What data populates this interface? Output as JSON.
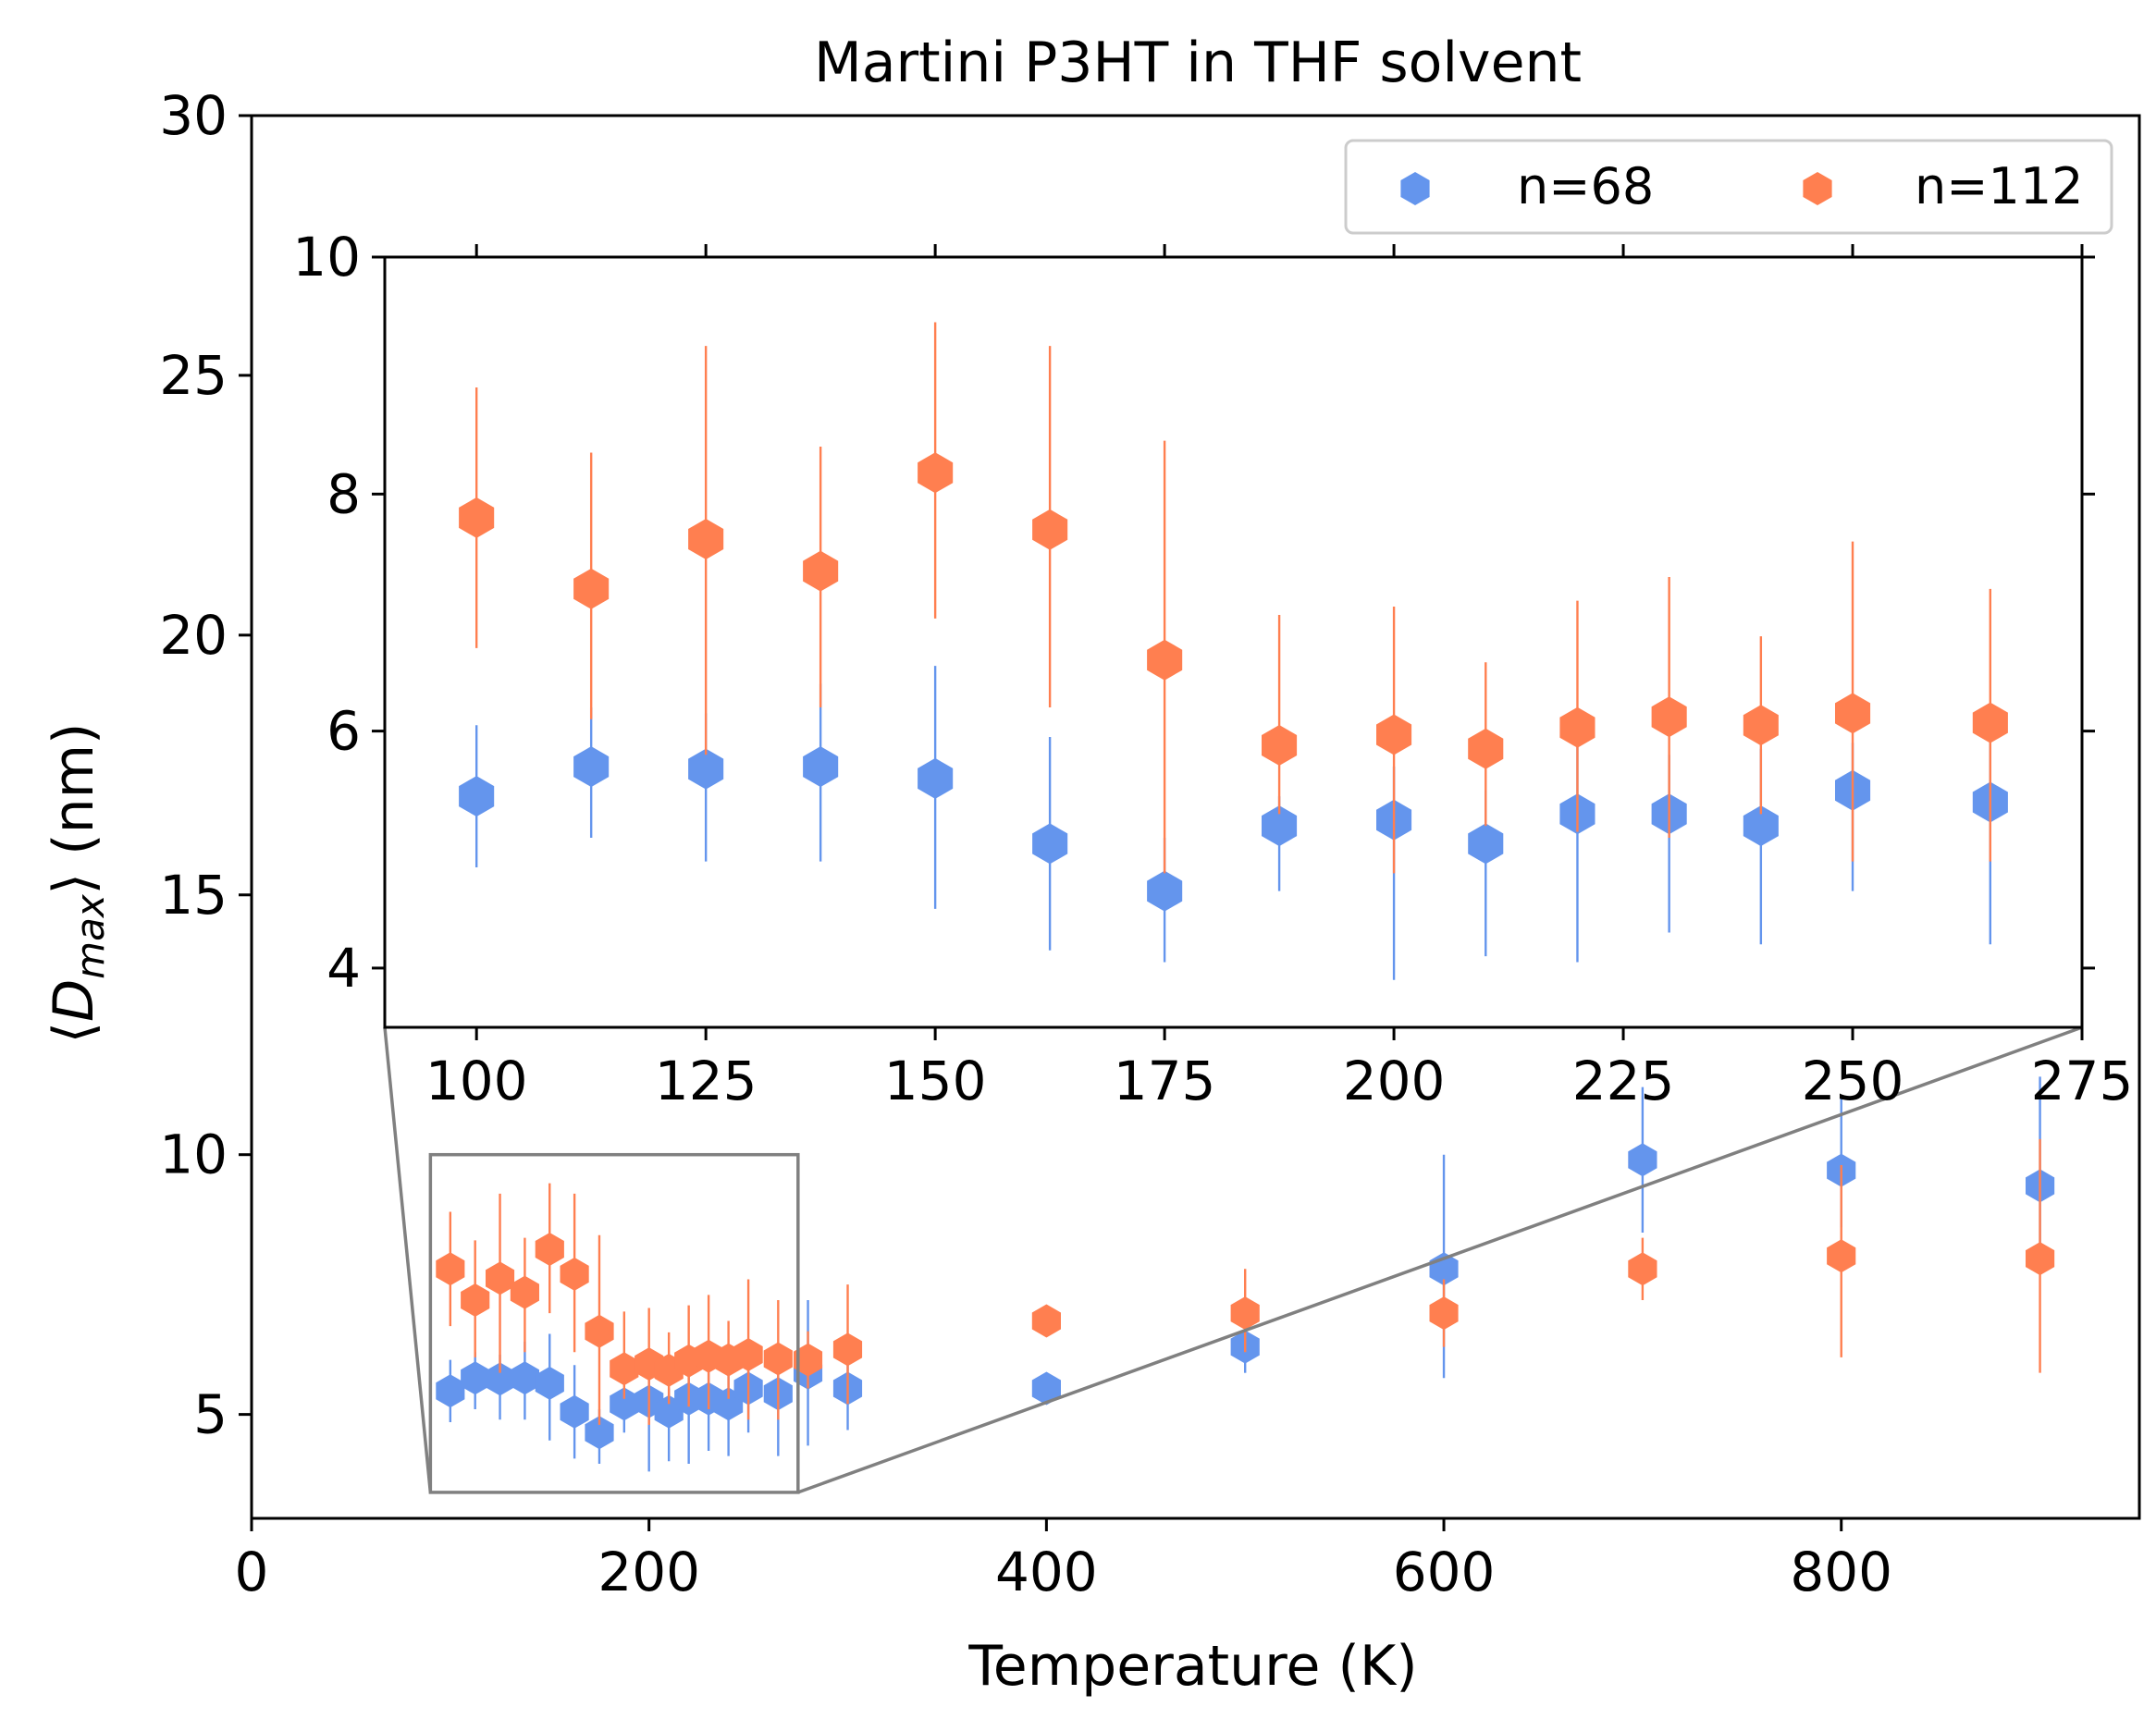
{
  "chart_data": [
    {
      "id": "main",
      "type": "scatter",
      "title": "Martini P3HT in THF solvent",
      "xlabel": "Temperature (K)",
      "ylabel_parts": [
        "⟨",
        "D",
        "max",
        "⟩ (nm)"
      ],
      "xlim": [
        0,
        950
      ],
      "ylim": [
        3,
        30
      ],
      "xticks": [
        0,
        200,
        400,
        600,
        800
      ],
      "yticks": [
        5,
        10,
        15,
        20,
        25,
        30
      ],
      "legend": {
        "location": "top-right",
        "entries": [
          "n=68",
          "n=112"
        ]
      },
      "series": [
        {
          "name": "n=68",
          "color": "#6495ED",
          "points": [
            {
              "x": 100,
              "y": 5.45,
              "lo": 4.85,
              "hi": 6.05
            },
            {
              "x": 112.5,
              "y": 5.7,
              "lo": 5.1,
              "hi": 6.2
            },
            {
              "x": 125,
              "y": 5.68,
              "lo": 4.9,
              "hi": 6.15
            },
            {
              "x": 137.5,
              "y": 5.7,
              "lo": 4.9,
              "hi": 6.4
            },
            {
              "x": 150,
              "y": 5.6,
              "lo": 4.5,
              "hi": 6.55
            },
            {
              "x": 162.5,
              "y": 5.05,
              "lo": 4.15,
              "hi": 5.95
            },
            {
              "x": 175,
              "y": 4.65,
              "lo": 4.05,
              "hi": 5.1
            },
            {
              "x": 187.5,
              "y": 5.2,
              "lo": 4.65,
              "hi": 5.45
            },
            {
              "x": 200,
              "y": 5.25,
              "lo": 3.9,
              "hi": 5.7
            },
            {
              "x": 210,
              "y": 5.05,
              "lo": 4.1,
              "hi": 5.5
            },
            {
              "x": 220,
              "y": 5.3,
              "lo": 4.05,
              "hi": 5.9
            },
            {
              "x": 230,
              "y": 5.3,
              "lo": 4.3,
              "hi": 5.8
            },
            {
              "x": 240,
              "y": 5.2,
              "lo": 4.2,
              "hi": 5.85
            },
            {
              "x": 250,
              "y": 5.5,
              "lo": 4.65,
              "hi": 5.9
            },
            {
              "x": 265,
              "y": 5.4,
              "lo": 4.2,
              "hi": 6.05
            },
            {
              "x": 280,
              "y": 5.8,
              "lo": 4.4,
              "hi": 7.2
            },
            {
              "x": 300,
              "y": 5.5,
              "lo": 4.7,
              "hi": 6.1
            },
            {
              "x": 400,
              "y": 5.5,
              "lo": 5.3,
              "hi": 5.7
            },
            {
              "x": 500,
              "y": 6.3,
              "lo": 5.8,
              "hi": 6.7
            },
            {
              "x": 600,
              "y": 7.8,
              "lo": 5.7,
              "hi": 10.0
            },
            {
              "x": 700,
              "y": 9.9,
              "lo": 8.5,
              "hi": 11.3
            },
            {
              "x": 800,
              "y": 9.7,
              "lo": 8.6,
              "hi": 11.1
            },
            {
              "x": 900,
              "y": 9.4,
              "lo": 7.8,
              "hi": 11.5
            }
          ]
        },
        {
          "name": "n=112",
          "color": "#FF7F50",
          "points": [
            {
              "x": 100,
              "y": 7.8,
              "lo": 6.7,
              "hi": 8.9
            },
            {
              "x": 112.5,
              "y": 7.2,
              "lo": 6.1,
              "hi": 8.35
            },
            {
              "x": 125,
              "y": 7.62,
              "lo": 5.8,
              "hi": 9.25
            },
            {
              "x": 137.5,
              "y": 7.35,
              "lo": 6.2,
              "hi": 8.4
            },
            {
              "x": 150,
              "y": 8.18,
              "lo": 6.95,
              "hi": 9.45
            },
            {
              "x": 162.5,
              "y": 7.7,
              "lo": 6.2,
              "hi": 9.25
            },
            {
              "x": 175,
              "y": 6.6,
              "lo": 4.8,
              "hi": 8.45
            },
            {
              "x": 187.5,
              "y": 5.88,
              "lo": 5.3,
              "hi": 6.98
            },
            {
              "x": 200,
              "y": 5.97,
              "lo": 4.8,
              "hi": 7.05
            },
            {
              "x": 210,
              "y": 5.85,
              "lo": 5.2,
              "hi": 6.58
            },
            {
              "x": 220,
              "y": 6.03,
              "lo": 5.15,
              "hi": 7.1
            },
            {
              "x": 230,
              "y": 6.12,
              "lo": 5.1,
              "hi": 7.3
            },
            {
              "x": 240,
              "y": 6.05,
              "lo": 5.3,
              "hi": 6.8
            },
            {
              "x": 250,
              "y": 6.15,
              "lo": 4.9,
              "hi": 7.6
            },
            {
              "x": 265,
              "y": 6.07,
              "lo": 4.9,
              "hi": 7.2
            },
            {
              "x": 280,
              "y": 6.05,
              "lo": 5.5,
              "hi": 6.6
            },
            {
              "x": 300,
              "y": 6.25,
              "lo": 5.2,
              "hi": 7.5
            },
            {
              "x": 400,
              "y": 6.8,
              "lo": 6.6,
              "hi": 7.0
            },
            {
              "x": 500,
              "y": 6.95,
              "lo": 6.2,
              "hi": 7.8
            },
            {
              "x": 600,
              "y": 6.95,
              "lo": 6.3,
              "hi": 7.6
            },
            {
              "x": 700,
              "y": 7.8,
              "lo": 7.2,
              "hi": 8.4
            },
            {
              "x": 800,
              "y": 8.05,
              "lo": 6.1,
              "hi": 9.8
            },
            {
              "x": 900,
              "y": 8.0,
              "lo": 5.8,
              "hi": 10.3
            }
          ]
        }
      ]
    },
    {
      "id": "inset",
      "type": "scatter",
      "title": "",
      "xlim": [
        90,
        275
      ],
      "ylim": [
        3.5,
        10
      ],
      "xticks": [
        100,
        125,
        150,
        175,
        200,
        225,
        250,
        275
      ],
      "yticks": [
        4,
        6,
        8,
        10
      ],
      "zoom_region": {
        "xlim": [
          90,
          275
        ],
        "ylim": [
          3.5,
          10
        ]
      }
    }
  ]
}
